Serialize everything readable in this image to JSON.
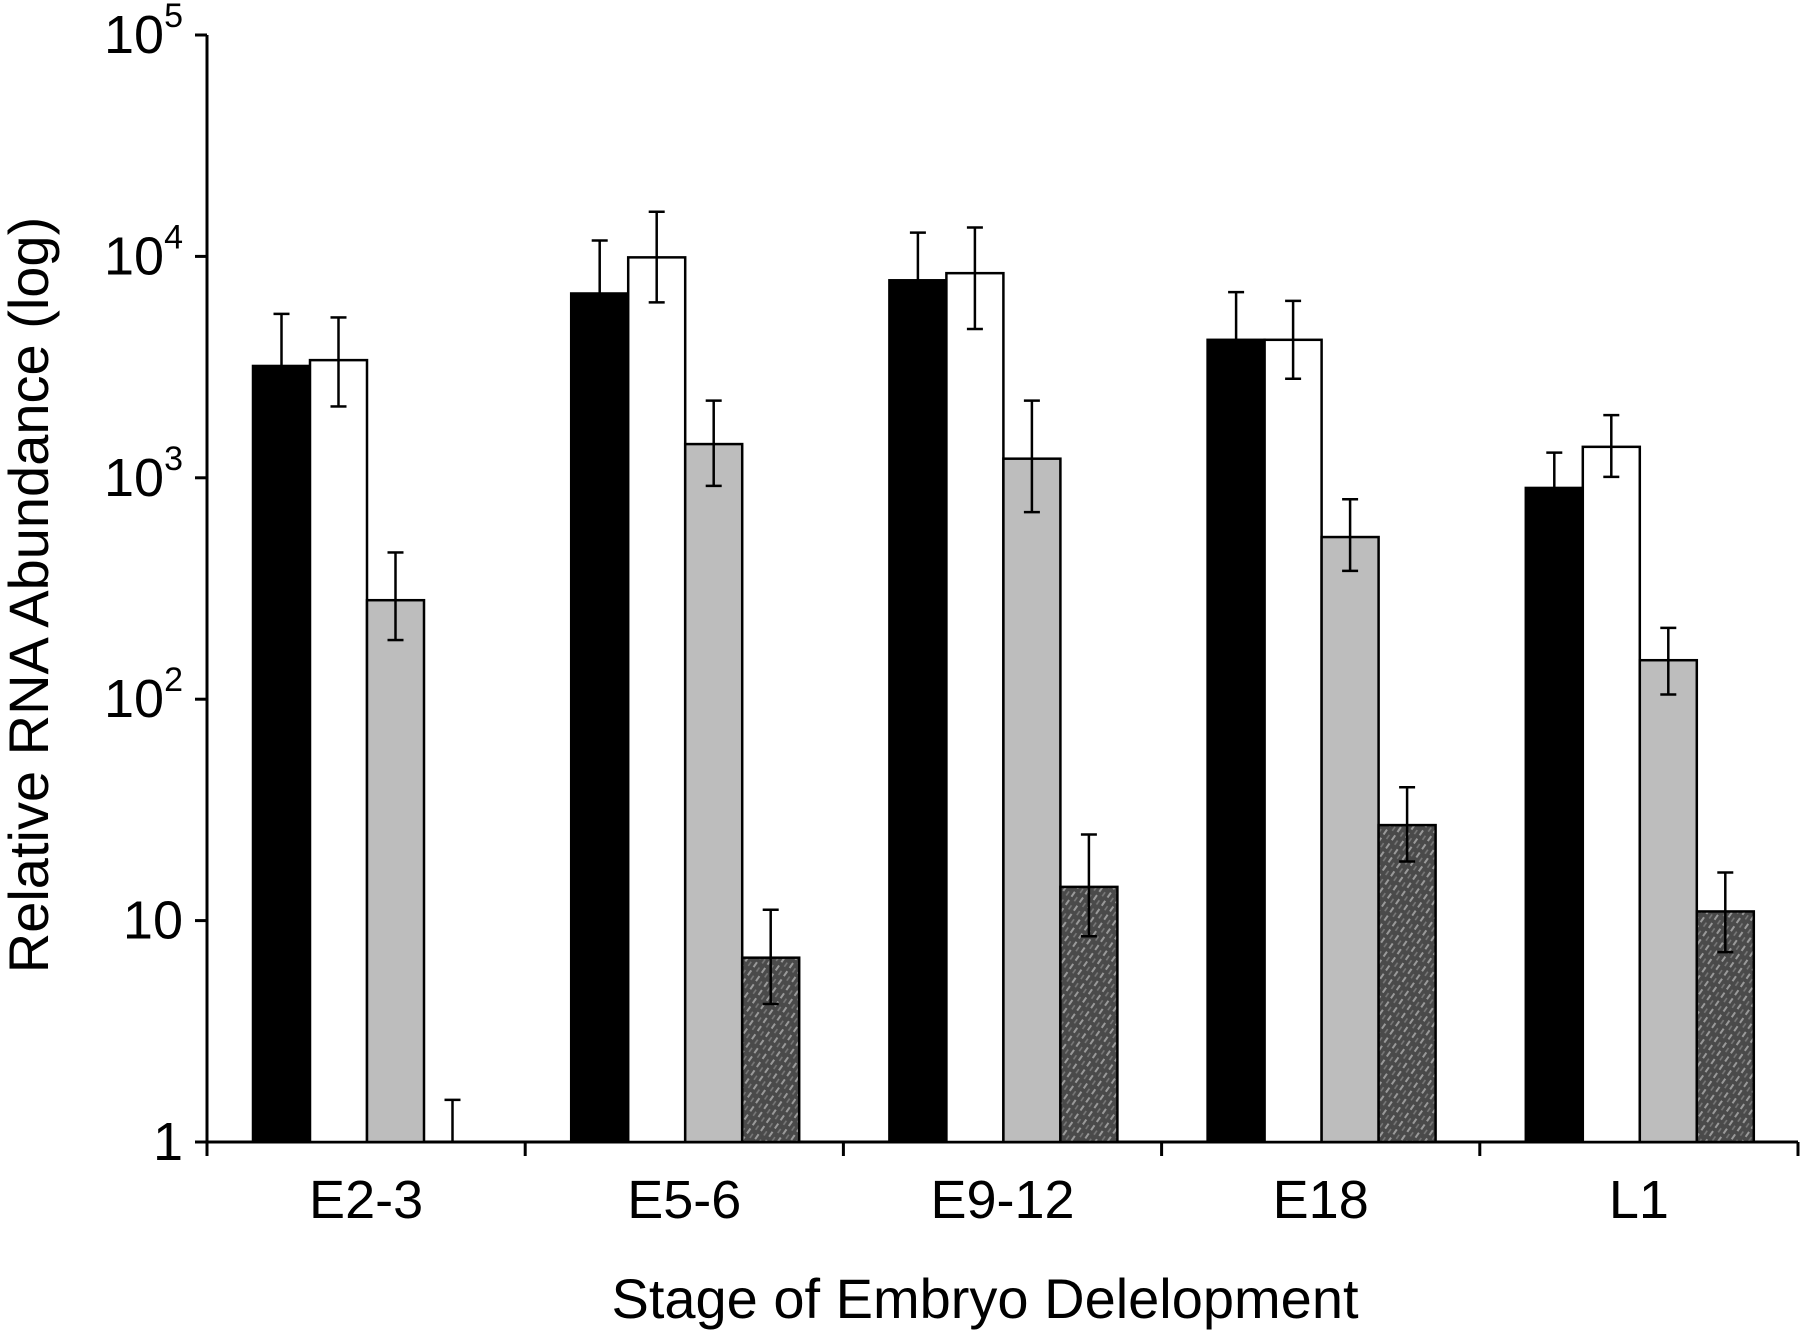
{
  "chart_data": {
    "type": "bar",
    "xlabel": "Stage of Embryo Delelopment",
    "ylabel": "Relative RNA Abundance (log)",
    "yscale": "log",
    "ylim": [
      1,
      100000
    ],
    "yticks": [
      {
        "value": 1,
        "base": "1",
        "exp": ""
      },
      {
        "value": 10,
        "base": "10",
        "exp": ""
      },
      {
        "value": 100,
        "base": "10",
        "exp": "2"
      },
      {
        "value": 1000,
        "base": "10",
        "exp": "3"
      },
      {
        "value": 10000,
        "base": "10",
        "exp": "4"
      },
      {
        "value": 100000,
        "base": "10",
        "exp": "5"
      }
    ],
    "categories": [
      "E2-3",
      "E5-6",
      "E9-12",
      "E18",
      "L1"
    ],
    "grid": false,
    "legend": "none",
    "series": [
      {
        "fill": "#000000",
        "pattern": "solid",
        "values": [
          3200,
          6800,
          7800,
          4200,
          900
        ],
        "err_low": [
          2300,
          5100,
          5700,
          3200,
          680
        ],
        "err_high": [
          5500,
          11800,
          12800,
          6900,
          1300
        ]
      },
      {
        "fill": "#ffffff",
        "pattern": "solid",
        "values": [
          3400,
          9900,
          8400,
          4200,
          1380
        ],
        "err_low": [
          2100,
          6200,
          4700,
          2800,
          1010
        ],
        "err_high": [
          5300,
          15900,
          13500,
          6300,
          1920
        ]
      },
      {
        "fill": "#bdbdbd",
        "pattern": "solid",
        "values": [
          280,
          1420,
          1220,
          540,
          150
        ],
        "err_low": [
          185,
          920,
          700,
          380,
          105
        ],
        "err_high": [
          460,
          2230,
          2230,
          800,
          210
        ]
      },
      {
        "fill": "#555555",
        "pattern": "hatched",
        "values": [
          1,
          6.8,
          14.2,
          27,
          11
        ],
        "err_low": [
          1,
          4.2,
          8.5,
          18.5,
          7.2
        ],
        "err_high": [
          1.55,
          11.2,
          24.5,
          40,
          16.5
        ]
      }
    ]
  }
}
